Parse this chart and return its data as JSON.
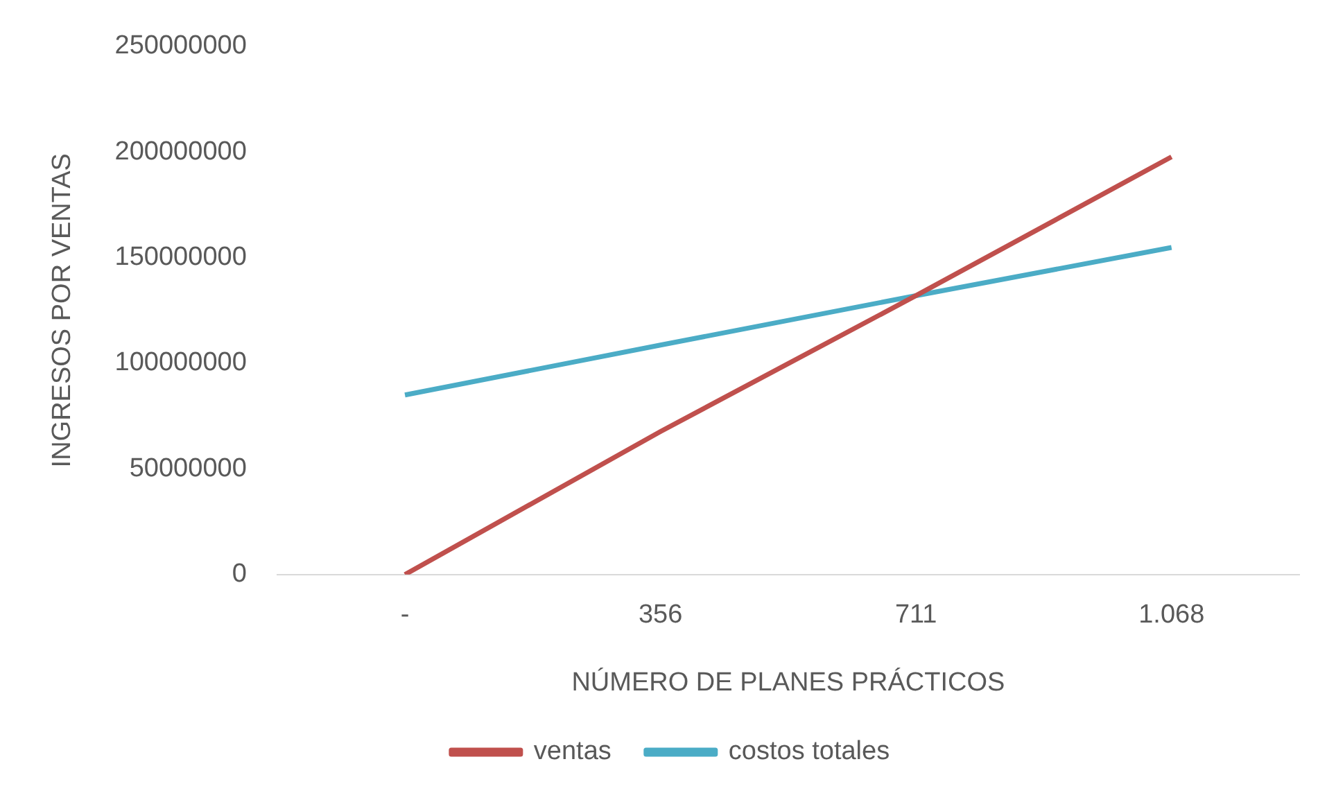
{
  "chart_data": {
    "type": "line",
    "xlabel": "NÚMERO DE PLANES PRÁCTICOS",
    "ylabel": "INGRESOS POR VENTAS",
    "categories": [
      "-",
      "356",
      "711",
      "1.068"
    ],
    "series": [
      {
        "name": "ventas",
        "color": "#c0504d",
        "values": [
          0,
          67700000,
          132000000,
          197700000
        ]
      },
      {
        "name": "costos totales",
        "color": "#4bacc6",
        "values": [
          85000000,
          108600000,
          132000000,
          154800000
        ]
      }
    ],
    "ylim": [
      0,
      250000000
    ],
    "yticks": [
      0,
      50000000,
      100000000,
      150000000,
      200000000,
      250000000
    ],
    "grid": false,
    "legend": "bottom",
    "marker": "none",
    "line_style": "solid"
  }
}
